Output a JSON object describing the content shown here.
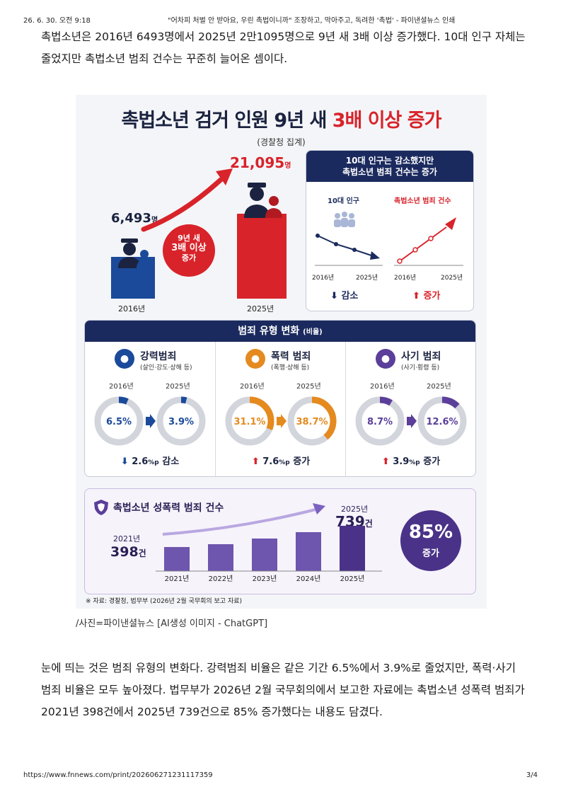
{
  "header": {
    "datetime": "26. 6. 30. 오전 9:18",
    "title": "\"어차피 처벌 안 받아요, 우린 촉법이니까\" 조장하고, 막아주고, 독려한 '촉법' - 파이낸셜뉴스 인쇄"
  },
  "article": {
    "para1": "촉법소년은 2016년 6493명에서 2025년 2만1095명으로 9년 새 3배 이상 증가했다. 10대 인구 자체는 줄었지만 촉법소년 범죄 건수는 꾸준히 늘어온 셈이다.",
    "caption": "/사진=파이낸셜뉴스 [AI생성 이미지 - ChatGPT]",
    "para2": "눈에 띄는 것은 범죄 유형의 변화다. 강력범죄 비율은 같은 기간 6.5%에서 3.9%로 줄었지만, 폭력·사기 범죄 비율은 모두 높아졌다. 법무부가 2026년 2월 국무회의에서 보고한 자료에는 촉법소년 성폭력 범죄가 2021년 398건에서 2025년 739건으로 85% 증가했다는 내용도 담겼다."
  },
  "footer": {
    "url": "https://www.fnnews.com/print/202606271231117359",
    "page": "3/4"
  },
  "infographic": {
    "title_main": "촉법소년 검거 인원 9년 새 ",
    "title_highlight": "3배 이상 증가",
    "subtitle": "(경찰청 집계)",
    "bar_2016_value": "6,493",
    "bar_2016_unit": "명",
    "bar_2016_year": "2016년",
    "bar_2025_value": "21,095",
    "bar_2025_unit": "명",
    "bar_2025_year": "2025년",
    "badge_line1": "9년 새",
    "badge_line2": "3배 이상",
    "badge_line3": "증가",
    "trend_head_line1": "10대 인구는 감소했지만",
    "trend_head_line2": "촉법소년 범죄 건수는 증가",
    "pop_label": "10대 인구",
    "crime_label": "촉법소년 범죄 건수",
    "pop_start": "2016년",
    "pop_end": "2025년",
    "crime_start": "2016년",
    "crime_end": "2025년",
    "pop_result": "감소",
    "crime_result": "증가",
    "types_head": "범죄 유형 변화",
    "types_head_small": "(비율)",
    "types": [
      {
        "name": "강력범죄",
        "sub": "(살인·강도·상해 등)",
        "y1": "2016년",
        "y2": "2025년",
        "v1": "6.5",
        "v2": "3.9",
        "unit": "%",
        "v1_num": 6.5,
        "v2_num": 3.9,
        "change": "2.6",
        "change_unit": "%p",
        "change_word": "감소",
        "direction": "down",
        "color": "#1c4a9a"
      },
      {
        "name": "폭력 범죄",
        "sub": "(폭행·상해 등)",
        "y1": "2016년",
        "y2": "2025년",
        "v1": "31.1",
        "v2": "38.7",
        "unit": "%",
        "v1_num": 31.1,
        "v2_num": 38.7,
        "change": "7.6",
        "change_unit": "%p",
        "change_word": "증가",
        "direction": "up",
        "color": "#e58a1f"
      },
      {
        "name": "사기 범죄",
        "sub": "(사기·횡령 등)",
        "y1": "2016년",
        "y2": "2025년",
        "v1": "8.7",
        "v2": "12.6",
        "unit": "%",
        "v1_num": 8.7,
        "v2_num": 12.6,
        "change": "3.9",
        "change_unit": "%p",
        "change_word": "증가",
        "direction": "up",
        "color": "#5b3f9a"
      }
    ],
    "sexcrime_title": "촉법소년 성폭력 범죄 건수",
    "sex_2021_year": "2021년",
    "sex_2021_value": "398",
    "sex_2021_unit": "건",
    "sex_2025_year": "2025년",
    "sex_2025_value": "739",
    "sex_2025_unit": "건",
    "sex_years": [
      "2021년",
      "2022년",
      "2023년",
      "2024년",
      "2025년"
    ],
    "sex_percent": "85%",
    "sex_percent_word": "증가",
    "source": "※ 자료: 경찰청, 법무부 (2026년 2월 국무회의 보고 자료)",
    "colors": {
      "navy": "#1b2a5e",
      "red": "#d8232a",
      "purple": "#5b3f9a",
      "blue": "#1c4a9a"
    }
  },
  "chart_data": [
    {
      "type": "bar",
      "title": "촉법소년 검거 인원 9년 새 3배 이상 증가",
      "categories": [
        "2016년",
        "2025년"
      ],
      "values": [
        6493,
        21095
      ]
    },
    {
      "type": "bar",
      "title": "촉법소년 성폭력 범죄 건수",
      "categories": [
        "2021년",
        "2022년",
        "2023년",
        "2024년",
        "2025년"
      ],
      "values": [
        398,
        440,
        530,
        640,
        739
      ],
      "labeled_values": {
        "2021년": 398,
        "2025년": 739
      }
    }
  ]
}
